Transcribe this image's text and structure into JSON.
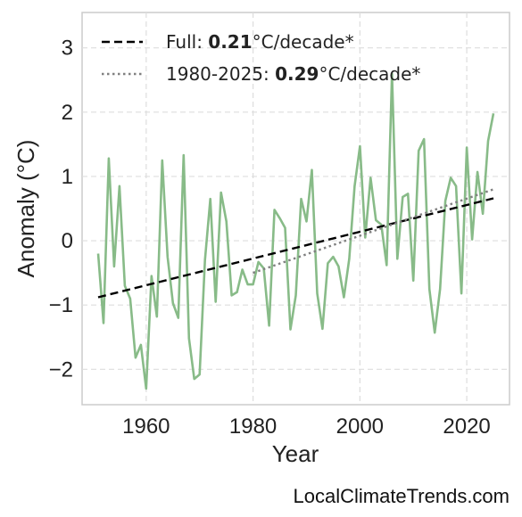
{
  "chart_data": {
    "type": "line",
    "xlabel": "Year",
    "ylabel": "Anomaly (°C)",
    "xlim": [
      1948,
      2028
    ],
    "ylim": [
      -2.55,
      3.55
    ],
    "xticks": [
      1960,
      1980,
      2000,
      2020
    ],
    "yticks": [
      -2,
      -1,
      0,
      1,
      2,
      3
    ],
    "ytick_labels": [
      "−2",
      "−1",
      "0",
      "1",
      "2",
      "3"
    ],
    "grid": true,
    "legend_position": "top-left",
    "legend": [
      {
        "prefix": "Full: ",
        "value": "0.21",
        "suffix": "°C/decade*",
        "style": "dashed",
        "color": "#000000"
      },
      {
        "prefix": "1980-2025: ",
        "value": "0.29",
        "suffix": "°C/decade*",
        "style": "dotted",
        "color": "#808080"
      }
    ],
    "series": [
      {
        "style": "solid",
        "color": "#88bb88",
        "x": [
          1951,
          1952,
          1953,
          1954,
          1955,
          1956,
          1957,
          1958,
          1959,
          1960,
          1961,
          1962,
          1963,
          1964,
          1965,
          1966,
          1967,
          1968,
          1969,
          1970,
          1971,
          1972,
          1973,
          1974,
          1975,
          1976,
          1977,
          1978,
          1979,
          1980,
          1981,
          1982,
          1983,
          1984,
          1985,
          1986,
          1987,
          1988,
          1989,
          1990,
          1991,
          1992,
          1993,
          1994,
          1995,
          1996,
          1997,
          1998,
          1999,
          2000,
          2001,
          2002,
          2003,
          2004,
          2005,
          2006,
          2007,
          2008,
          2009,
          2010,
          2011,
          2012,
          2013,
          2014,
          2015,
          2016,
          2017,
          2018,
          2019,
          2020,
          2021,
          2022,
          2023,
          2024,
          2025
        ],
        "y": [
          -0.2,
          -1.28,
          1.28,
          -0.4,
          0.85,
          -0.7,
          -0.9,
          -1.82,
          -1.62,
          -2.3,
          -0.55,
          -1.18,
          1.25,
          -0.25,
          -0.97,
          -1.2,
          1.33,
          -1.52,
          -2.15,
          -2.08,
          -0.3,
          0.65,
          -0.95,
          0.75,
          0.3,
          -0.85,
          -0.8,
          -0.45,
          -0.68,
          -0.68,
          -0.33,
          -0.43,
          -1.32,
          0.48,
          0.35,
          0.2,
          -1.38,
          -0.85,
          0.65,
          0.3,
          1.1,
          -0.82,
          -1.37,
          -0.35,
          -0.25,
          -0.4,
          -0.88,
          -0.28,
          0.85,
          1.47,
          0.05,
          0.98,
          0.32,
          0.25,
          -0.38,
          2.6,
          -0.28,
          0.68,
          0.73,
          -0.62,
          1.4,
          1.58,
          -0.75,
          -1.43,
          -0.75,
          0.62,
          0.98,
          0.85,
          -0.82,
          1.45,
          0.02,
          1.07,
          0.42,
          1.55,
          1.98
        ]
      },
      {
        "style": "dashed",
        "color": "#000000",
        "x": [
          1951,
          2025
        ],
        "y": [
          -0.88,
          0.66
        ]
      },
      {
        "style": "dotted",
        "color": "#808080",
        "x": [
          1980,
          2025
        ],
        "y": [
          -0.5,
          0.8
        ]
      }
    ]
  },
  "footer": {
    "credit": "LocalClimateTrends.com"
  }
}
